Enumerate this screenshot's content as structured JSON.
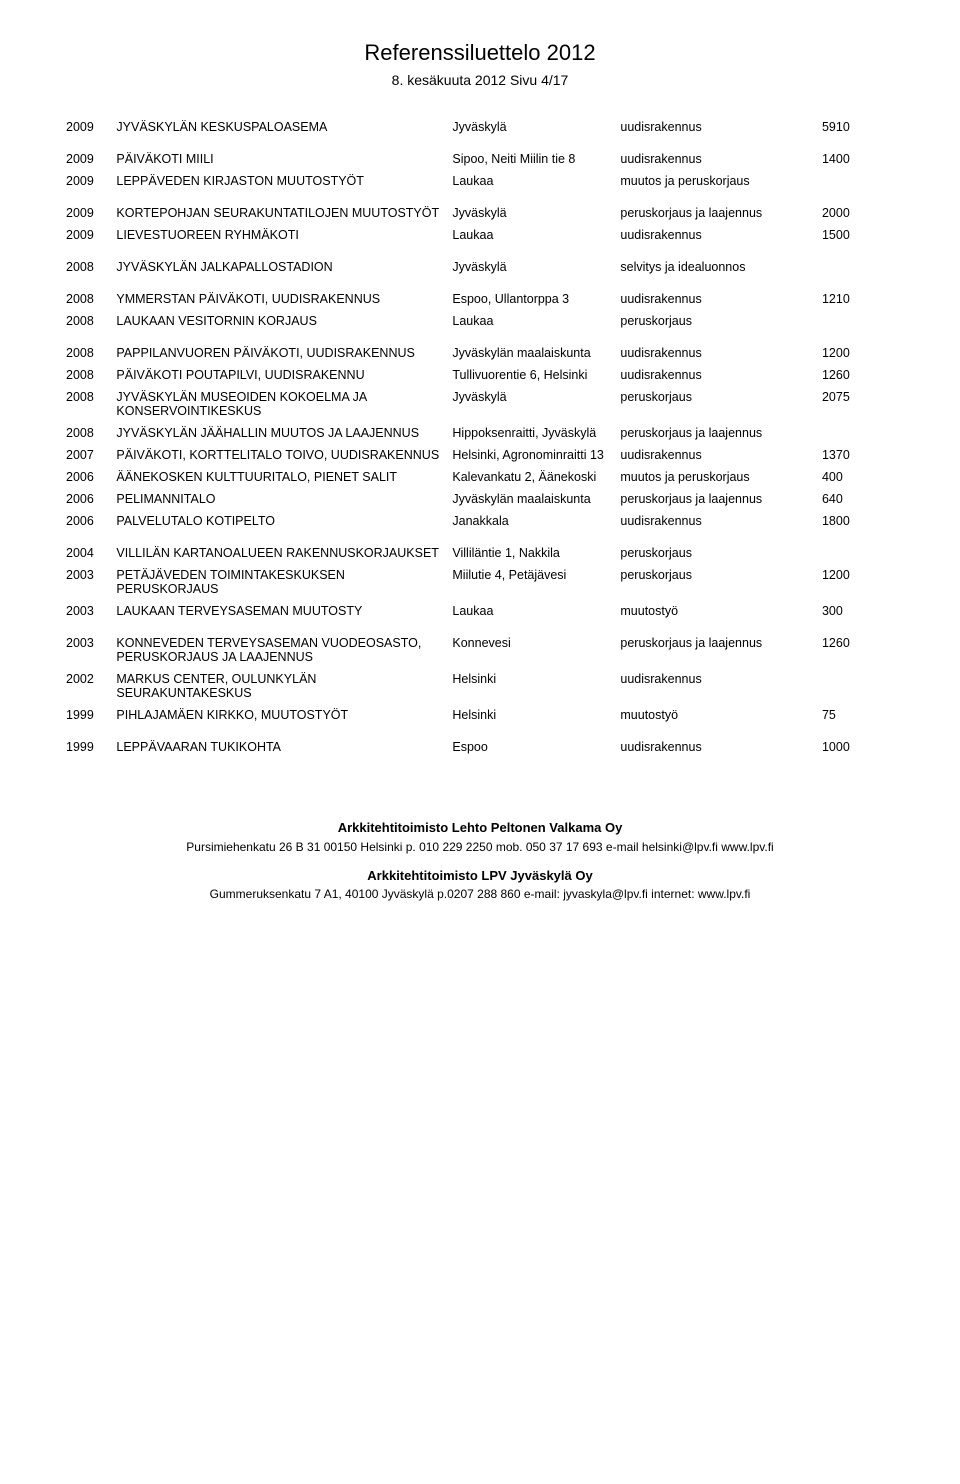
{
  "title": "Referenssiluettelo 2012",
  "subtitle": "8. kesäkuuta 2012 Sivu 4/17",
  "rows": [
    {
      "year": "2009",
      "project": "JYVÄSKYLÄN KESKUSPALOASEMA",
      "location": "Jyväskylä",
      "type": "uudisrakennus",
      "area": "5910",
      "gap": false
    },
    {
      "year": "2009",
      "project": "PÄIVÄKOTI MIILI",
      "location": "Sipoo, Neiti Miilin tie 8",
      "type": "uudisrakennus",
      "area": "1400",
      "gap": true
    },
    {
      "year": "2009",
      "project": "LEPPÄVEDEN KIRJASTON MUUTOSTYÖT",
      "location": "Laukaa",
      "type": "muutos ja peruskorjaus",
      "area": "",
      "gap": false
    },
    {
      "year": "2009",
      "project": "KORTEPOHJAN SEURAKUNTATILOJEN MUUTOSTYÖT",
      "location": "Jyväskylä",
      "type": "peruskorjaus ja laajennus",
      "area": "2000",
      "gap": true
    },
    {
      "year": "2009",
      "project": "LIEVESTUOREEN RYHMÄKOTI",
      "location": "Laukaa",
      "type": "uudisrakennus",
      "area": "1500",
      "gap": false
    },
    {
      "year": "2008",
      "project": "JYVÄSKYLÄN JALKAPALLOSTADION",
      "location": "Jyväskylä",
      "type": "selvitys ja idealuonnos",
      "area": "",
      "gap": true
    },
    {
      "year": "2008",
      "project": "YMMERSTAN PÄIVÄKOTI, UUDISRAKENNUS",
      "location": "Espoo, Ullantorppa 3",
      "type": "uudisrakennus",
      "area": "1210",
      "gap": true
    },
    {
      "year": "2008",
      "project": "LAUKAAN VESITORNIN KORJAUS",
      "location": "Laukaa",
      "type": "peruskorjaus",
      "area": "",
      "gap": false
    },
    {
      "year": "2008",
      "project": "PAPPILANVUOREN PÄIVÄKOTI, UUDISRAKENNUS",
      "location": "Jyväskylän maalaiskunta",
      "type": "uudisrakennus",
      "area": "1200",
      "gap": true
    },
    {
      "year": "2008",
      "project": "PÄIVÄKOTI POUTAPILVI, UUDISRAKENNU",
      "location": "Tullivuorentie 6, Helsinki",
      "type": "uudisrakennus",
      "area": "1260",
      "gap": false
    },
    {
      "year": "2008",
      "project": "JYVÄSKYLÄN MUSEOIDEN KOKOELMA JA KONSERVOINTIKESKUS",
      "location": "Jyväskylä",
      "type": "peruskorjaus",
      "area": "2075",
      "gap": false
    },
    {
      "year": "2008",
      "project": "JYVÄSKYLÄN JÄÄHALLIN MUUTOS JA LAAJENNUS",
      "location": "Hippoksenraitti, Jyväskylä",
      "type": "peruskorjaus ja laajennus",
      "area": "",
      "gap": false
    },
    {
      "year": "2007",
      "project": "PÄIVÄKOTI, KORTTELITALO TOIVO, UUDISRAKENNUS",
      "location": "Helsinki, Agronominraitti 13",
      "type": "uudisrakennus",
      "area": "1370",
      "gap": false
    },
    {
      "year": "2006",
      "project": "ÄÄNEKOSKEN KULTTUURITALO, PIENET SALIT",
      "location": "Kalevankatu 2, Äänekoski",
      "type": "muutos ja peruskorjaus",
      "area": "400",
      "gap": false
    },
    {
      "year": "2006",
      "project": "PELIMANNITALO",
      "location": "Jyväskylän maalaiskunta",
      "type": "peruskorjaus ja laajennus",
      "area": "640",
      "gap": false
    },
    {
      "year": "2006",
      "project": "PALVELUTALO KOTIPELTO",
      "location": "Janakkala",
      "type": "uudisrakennus",
      "area": "1800",
      "gap": false
    },
    {
      "year": "2004",
      "project": "VILLILÄN KARTANOALUEEN RAKENNUSKORJAUKSET",
      "location": "Villiläntie 1, Nakkila",
      "type": "peruskorjaus",
      "area": "",
      "gap": true
    },
    {
      "year": "2003",
      "project": "PETÄJÄVEDEN TOIMINTAKESKUKSEN PERUSKORJAUS",
      "location": "Miilutie 4, Petäjävesi",
      "type": "peruskorjaus",
      "area": "1200",
      "gap": false
    },
    {
      "year": "2003",
      "project": "LAUKAAN TERVEYSASEMAN MUUTOSTY",
      "location": "Laukaa",
      "type": "muutostyö",
      "area": "300",
      "gap": false
    },
    {
      "year": "2003",
      "project": "KONNEVEDEN TERVEYSASEMAN VUODEOSASTO, PERUSKORJAUS JA LAAJENNUS",
      "location": "Konnevesi",
      "type": "peruskorjaus ja laajennus",
      "area": "1260",
      "gap": true
    },
    {
      "year": "2002",
      "project": "MARKUS CENTER, OULUNKYLÄN SEURAKUNTAKESKUS",
      "location": "Helsinki",
      "type": "uudisrakennus",
      "area": "",
      "gap": false
    },
    {
      "year": "1999",
      "project": "PIHLAJAMÄEN KIRKKO, MUUTOSTYÖT",
      "location": "Helsinki",
      "type": "muutostyö",
      "area": "75",
      "gap": false
    },
    {
      "year": "1999",
      "project": "LEPPÄVAARAN TUKIKOHTA",
      "location": "Espoo",
      "type": "uudisrakennus",
      "area": "1000",
      "gap": true
    }
  ],
  "footer": {
    "company1": "Arkkitehtitoimisto Lehto Peltonen Valkama Oy",
    "addr1": "Pursimiehenkatu 26 B 31 00150 Helsinki p. 010 229 2250   mob. 050 37 17 693  e-mail helsinki@lpv.fi   www.lpv.fi",
    "company2": "Arkkitehtitoimisto LPV Jyväskylä Oy",
    "addr2": "Gummeruksenkatu 7 A1, 40100 Jyväskylä p.0207 288 860  e-mail: jyvaskyla@lpv.fi  internet: www.lpv.fi"
  }
}
